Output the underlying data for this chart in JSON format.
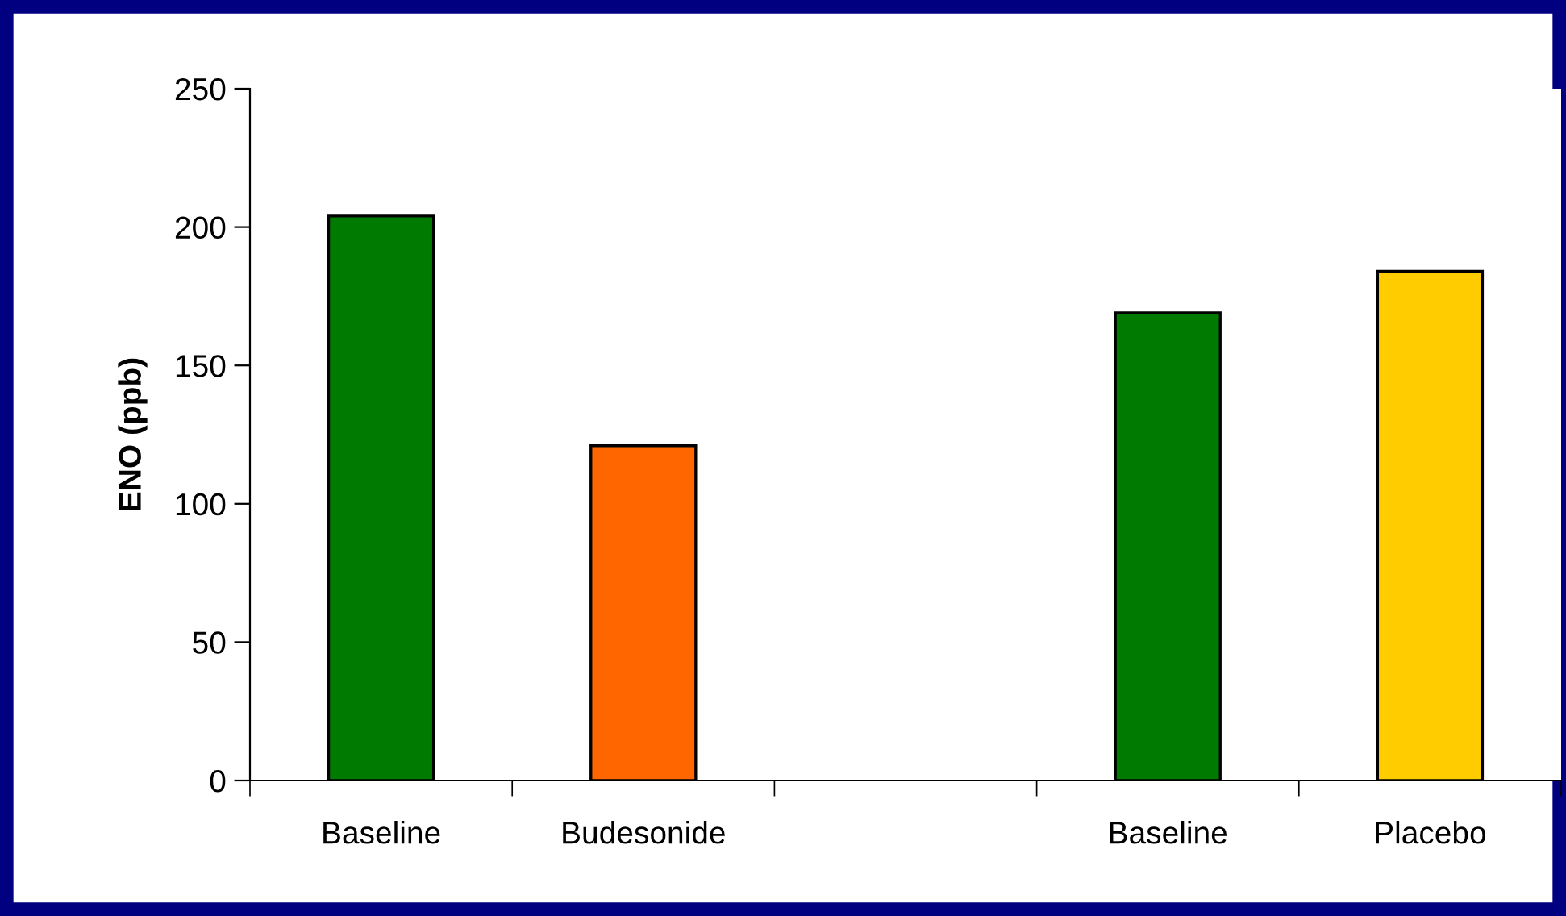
{
  "chart_data": {
    "type": "bar",
    "ylabel": "ENO (ppb)",
    "categories": [
      "Baseline",
      "Budesonide",
      null,
      "Baseline",
      "Placebo"
    ],
    "values": [
      204,
      121,
      null,
      169,
      184
    ],
    "colors": [
      "#007a00",
      "#ff6600",
      null,
      "#007a00",
      "#ffcc00"
    ],
    "ylim": [
      0,
      250
    ],
    "yticks": [
      0,
      50,
      100,
      150,
      200,
      250
    ],
    "grid": false,
    "legend": false
  }
}
